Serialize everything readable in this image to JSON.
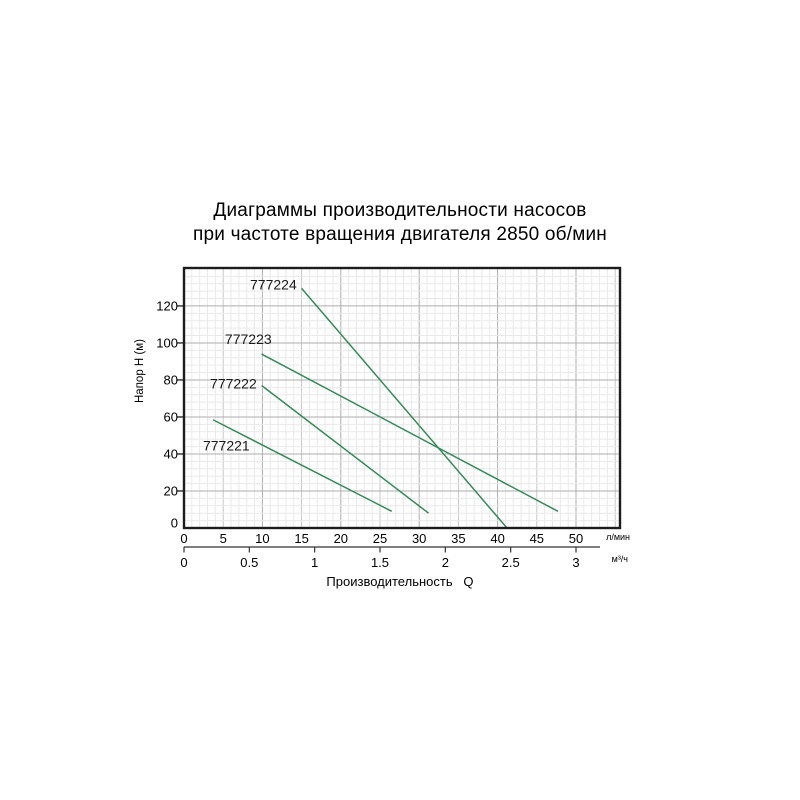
{
  "title": {
    "line1": "Диаграммы производительности насосов",
    "line2": "при частоте вращения двигателя 2850 об/мин"
  },
  "chart_data": {
    "type": "line",
    "title": "Диаграммы производительности насосов при частоте вращения двигателя 2850 об/мин",
    "xlabel": "Производительность   Q",
    "ylabel": "Напор Н (м)",
    "x_axis_primary": {
      "unit": "л/мин",
      "ticks": [
        0,
        5,
        10,
        15,
        20,
        25,
        30,
        35,
        40,
        45,
        50
      ],
      "range": [
        0,
        55.5
      ]
    },
    "x_axis_secondary": {
      "unit": "м³/ч",
      "ticks": [
        0,
        0.5,
        1,
        1.5,
        2,
        2.5,
        3
      ],
      "liters_per_min_per_unit": 16.667
    },
    "y_axis": {
      "ticks": [
        0,
        20,
        40,
        60,
        80,
        100,
        120
      ],
      "range": [
        0,
        140.5
      ]
    },
    "grid": {
      "x_minor_step": 1,
      "x_medium_step": 5,
      "x_major_step": 10,
      "y_minor_step": 4,
      "y_major_step": 20
    },
    "series": [
      {
        "name": "777221",
        "points": [
          [
            3.7,
            58.5
          ],
          [
            26.5,
            9
          ]
        ],
        "label_pos": [
          5.4,
          44.5
        ]
      },
      {
        "name": "777222",
        "points": [
          [
            9.9,
            77
          ],
          [
            31.2,
            8
          ]
        ],
        "label_pos": [
          6.3,
          78
        ]
      },
      {
        "name": "777223",
        "points": [
          [
            9.9,
            94
          ],
          [
            47.7,
            9
          ]
        ],
        "label_pos": [
          8.2,
          102
        ]
      },
      {
        "name": "777224",
        "points": [
          [
            15,
            129.5
          ],
          [
            41.2,
            0
          ]
        ],
        "label_pos": [
          11.4,
          131.5
        ]
      }
    ],
    "colors": {
      "series_line": "#348b58",
      "grid_minor": "#e9e9e9",
      "grid_medium": "#c7c7c7",
      "grid_major": "#aeaeae",
      "axis": "#1c1c1c",
      "text": "#000000",
      "series_label_text": "#1a1a1a"
    }
  }
}
